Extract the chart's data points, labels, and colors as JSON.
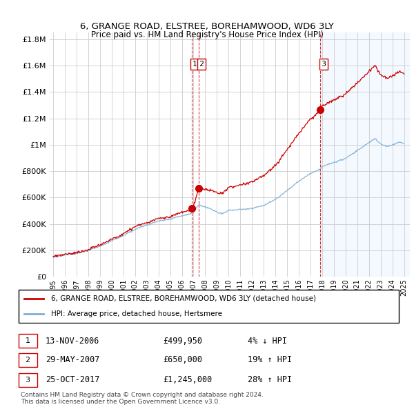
{
  "title": "6, GRANGE ROAD, ELSTREE, BOREHAMWOOD, WD6 3LY",
  "subtitle": "Price paid vs. HM Land Registry's House Price Index (HPI)",
  "ytick_values": [
    0,
    200000,
    400000,
    600000,
    800000,
    1000000,
    1200000,
    1400000,
    1600000,
    1800000
  ],
  "ylim": [
    0,
    1850000
  ],
  "xlim_start": 1994.7,
  "xlim_end": 2025.5,
  "transactions": [
    {
      "num": 1,
      "date": "13-NOV-2006",
      "price": 499950,
      "price_str": "£499,950",
      "pct": "4%",
      "dir": "↓",
      "year": 2006.87
    },
    {
      "num": 2,
      "date": "29-MAY-2007",
      "price": 650000,
      "price_str": "£650,000",
      "pct": "19%",
      "dir": "↑",
      "year": 2007.42
    },
    {
      "num": 3,
      "date": "25-OCT-2017",
      "price": 1245000,
      "price_str": "£1,245,000",
      "pct": "28%",
      "dir": "↑",
      "year": 2017.81
    }
  ],
  "red_line_color": "#cc0000",
  "blue_line_color": "#7dadd4",
  "grid_color": "#cccccc",
  "bg_blue": "#ddeeff",
  "footer": "Contains HM Land Registry data © Crown copyright and database right 2024.\nThis data is licensed under the Open Government Licence v3.0.",
  "legend_label_red": "6, GRANGE ROAD, ELSTREE, BOREHAMWOOD, WD6 3LY (detached house)",
  "legend_label_blue": "HPI: Average price, detached house, Hertsmere"
}
